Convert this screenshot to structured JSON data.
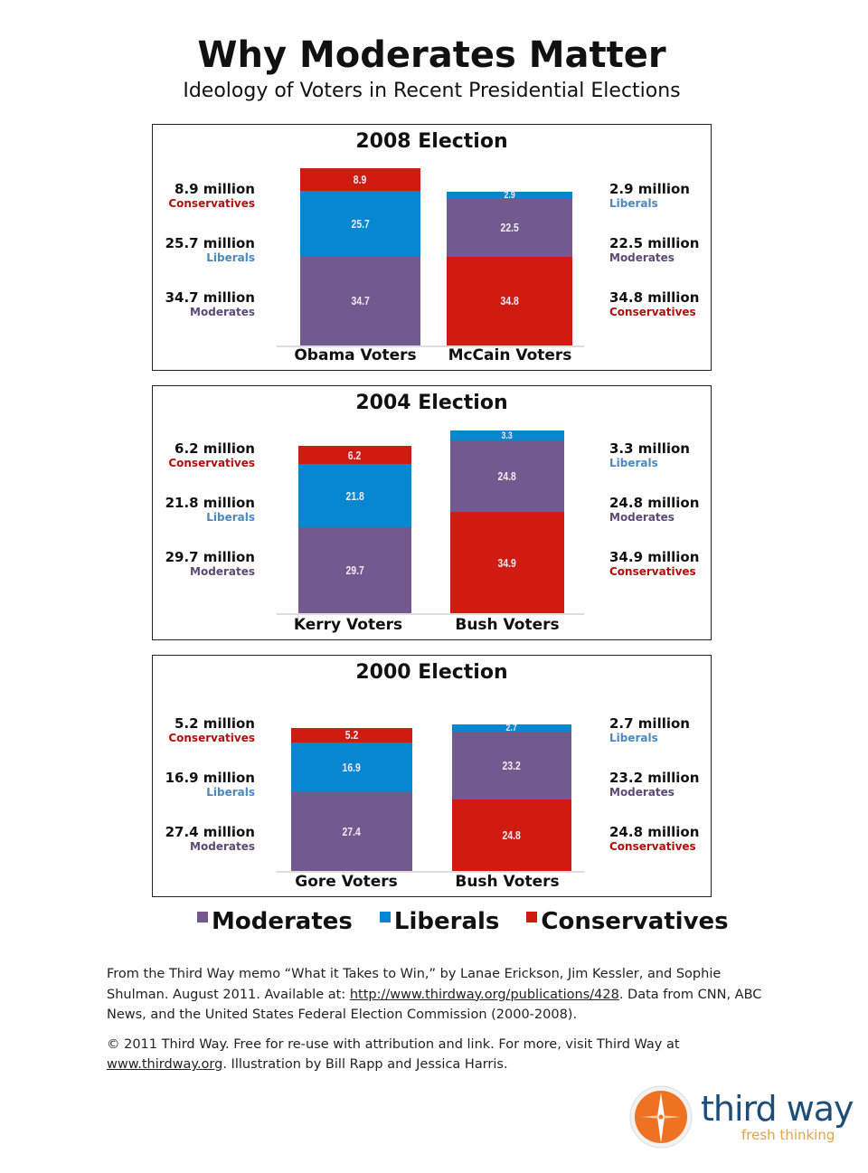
{
  "title": "Why Moderates Matter",
  "subtitle": "Ideology of Voters in Recent Presidential Elections",
  "colors": {
    "Moderates": "#725a8e",
    "Liberals": "#0787d0",
    "Conservatives": "#d01c10"
  },
  "category_text_colors": {
    "Moderates": "#5a4a78",
    "Liberals": "#4a88c0",
    "Conservatives": "#b01010"
  },
  "chart_data": [
    {
      "type": "bar",
      "stacked": true,
      "title": "2008 Election",
      "categories": [
        "Obama Voters",
        "McCain Voters"
      ],
      "bars": [
        {
          "segments": [
            {
              "name": "Moderates",
              "value": 34.7
            },
            {
              "name": "Liberals",
              "value": 25.7
            },
            {
              "name": "Conservatives",
              "value": 8.9
            }
          ]
        },
        {
          "segments": [
            {
              "name": "Conservatives",
              "value": 34.8
            },
            {
              "name": "Moderates",
              "value": 22.5
            },
            {
              "name": "Liberals",
              "value": 2.9
            }
          ]
        }
      ],
      "left_labels": [
        {
          "num": "8.9 million",
          "cat": "Conservatives"
        },
        {
          "num": "25.7 million",
          "cat": "Liberals"
        },
        {
          "num": "34.7 million",
          "cat": "Moderates"
        }
      ],
      "right_labels": [
        {
          "num": "2.9 million",
          "cat": "Liberals"
        },
        {
          "num": "22.5 million",
          "cat": "Moderates"
        },
        {
          "num": "34.8 million",
          "cat": "Conservatives"
        }
      ]
    },
    {
      "type": "bar",
      "stacked": true,
      "title": "2004 Election",
      "categories": [
        "Kerry Voters",
        "Bush Voters"
      ],
      "bars": [
        {
          "segments": [
            {
              "name": "Moderates",
              "value": 29.7
            },
            {
              "name": "Liberals",
              "value": 21.8
            },
            {
              "name": "Conservatives",
              "value": 6.2
            }
          ]
        },
        {
          "segments": [
            {
              "name": "Conservatives",
              "value": 34.9
            },
            {
              "name": "Moderates",
              "value": 24.8
            },
            {
              "name": "Liberals",
              "value": 3.3
            }
          ]
        }
      ],
      "left_labels": [
        {
          "num": "6.2 million",
          "cat": "Conservatives"
        },
        {
          "num": "21.8 million",
          "cat": "Liberals"
        },
        {
          "num": "29.7 million",
          "cat": "Moderates"
        }
      ],
      "right_labels": [
        {
          "num": "3.3 million",
          "cat": "Liberals"
        },
        {
          "num": "24.8 million",
          "cat": "Moderates"
        },
        {
          "num": "34.9 million",
          "cat": "Conservatives"
        }
      ]
    },
    {
      "type": "bar",
      "stacked": true,
      "title": "2000 Election",
      "categories": [
        "Gore Voters",
        "Bush Voters"
      ],
      "bars": [
        {
          "segments": [
            {
              "name": "Moderates",
              "value": 27.4
            },
            {
              "name": "Liberals",
              "value": 16.9
            },
            {
              "name": "Conservatives",
              "value": 5.2
            }
          ]
        },
        {
          "segments": [
            {
              "name": "Conservatives",
              "value": 24.8
            },
            {
              "name": "Moderates",
              "value": 23.2
            },
            {
              "name": "Liberals",
              "value": 2.7
            }
          ]
        }
      ],
      "left_labels": [
        {
          "num": "5.2 million",
          "cat": "Conservatives"
        },
        {
          "num": "16.9 million",
          "cat": "Liberals"
        },
        {
          "num": "27.4 million",
          "cat": "Moderates"
        }
      ],
      "right_labels": [
        {
          "num": "2.7 million",
          "cat": "Liberals"
        },
        {
          "num": "23.2 million",
          "cat": "Moderates"
        },
        {
          "num": "24.8 million",
          "cat": "Conservatives"
        }
      ]
    }
  ],
  "legend": [
    "Moderates",
    "Liberals",
    "Conservatives"
  ],
  "source": {
    "p1_a": "From the Third Way memo “What it Takes to Win,” by Lanae Erickson, Jim Kessler, and Sophie Shulman. August 2011. Available at: ",
    "p1_link": "http://www.thirdway.org/publications/428",
    "p1_b": ". Data from CNN, ABC News, and the United States Federal Election Commission (2000-2008).",
    "p2_a": "© 2011 Third Way. Free for re-use with attribution and link. For more, visit Third Way at ",
    "p2_link": "www.thirdway.org",
    "p2_b": ". Illustration by Bill Rapp and Jessica Harris."
  },
  "logo": {
    "name": "third way",
    "tagline": "fresh thinking"
  }
}
